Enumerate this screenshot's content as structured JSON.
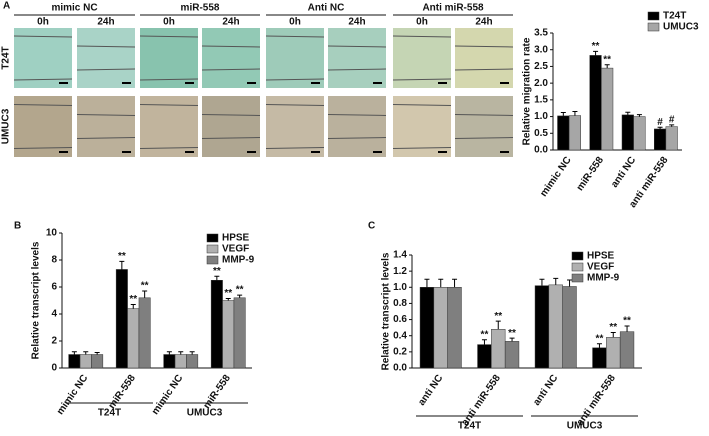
{
  "micrographs": {
    "groups": [
      "mimic NC",
      "miR-558",
      "Anti NC",
      "Anti miR-558"
    ],
    "times": [
      "0h",
      "24h"
    ],
    "rows": [
      "T24T",
      "UMUC3"
    ]
  },
  "chart_data": [
    {
      "type": "bar",
      "panel": "A",
      "ylabel": "Relative migration rate",
      "categories": [
        "mimic NC",
        "miR-558",
        "anti NC",
        "anti miR-558"
      ],
      "series": [
        {
          "name": "T24T",
          "color": "#000000",
          "values": [
            1.02,
            2.83,
            1.05,
            0.63
          ],
          "errors": [
            0.1,
            0.12,
            0.08,
            0.05
          ],
          "annotations": [
            null,
            "**",
            null,
            "#"
          ]
        },
        {
          "name": "UMUC3",
          "color": "#a6a6a6",
          "values": [
            1.03,
            2.45,
            1.0,
            0.7
          ],
          "errors": [
            0.12,
            0.1,
            0.06,
            0.05
          ],
          "annotations": [
            null,
            "**",
            null,
            "#"
          ]
        }
      ],
      "ylim": [
        0,
        3.5
      ],
      "yticks": [
        {
          "value": 0,
          "label": "0.0"
        },
        {
          "value": 0.5,
          "label": "0.5"
        },
        {
          "value": 1,
          "label": "1.0"
        },
        {
          "value": 1.5,
          "label": "1.5"
        },
        {
          "value": 2,
          "label": "2.0"
        },
        {
          "value": 2.5,
          "label": "2.5"
        },
        {
          "value": 3,
          "label": "3.0"
        },
        {
          "value": 3.5,
          "label": "3.5"
        }
      ],
      "legend": "upper right",
      "grid": false
    },
    {
      "type": "bar",
      "panel": "B",
      "ylabel": "Relative transcript levels",
      "categories": [
        "mimic NC",
        "miR-558",
        "mimic NC",
        "miR-558"
      ],
      "groups": [
        "T24T",
        "UMUC3"
      ],
      "series": [
        {
          "name": "HPSE",
          "color": "#000000",
          "values": [
            1,
            7.3,
            1,
            6.5
          ],
          "errors": [
            0.2,
            0.6,
            0.2,
            0.3
          ],
          "annotations": [
            null,
            "**",
            null,
            "**"
          ]
        },
        {
          "name": "VEGF",
          "color": "#b0b0b0",
          "values": [
            1,
            4.4,
            1,
            5.0
          ],
          "errors": [
            0.2,
            0.3,
            0.2,
            0.15
          ],
          "annotations": [
            null,
            "**",
            null,
            "**"
          ]
        },
        {
          "name": "MMP-9",
          "color": "#7f7f7f",
          "values": [
            1,
            5.2,
            1,
            5.2
          ],
          "errors": [
            0.15,
            0.5,
            0.2,
            0.2
          ],
          "annotations": [
            null,
            "**",
            null,
            "**"
          ]
        }
      ],
      "ylim": [
        0,
        10
      ],
      "yticks": [
        0,
        2,
        4,
        6,
        8,
        10
      ],
      "legend": "upper right",
      "grid": false
    },
    {
      "type": "bar",
      "panel": "C",
      "ylabel": "Relative transcript levels",
      "categories": [
        "anti NC",
        "anti miR-558",
        "anti NC",
        "anti miR-558"
      ],
      "groups": [
        "T24T",
        "UMUC3"
      ],
      "series": [
        {
          "name": "HPSE",
          "color": "#000000",
          "values": [
            1.0,
            0.29,
            1.02,
            0.25
          ],
          "errors": [
            0.1,
            0.06,
            0.08,
            0.05
          ],
          "annotations": [
            null,
            "**",
            null,
            "**"
          ]
        },
        {
          "name": "VEGF",
          "color": "#b0b0b0",
          "values": [
            1.0,
            0.48,
            1.03,
            0.38
          ],
          "errors": [
            0.1,
            0.1,
            0.08,
            0.06
          ],
          "annotations": [
            null,
            "**",
            null,
            "**"
          ]
        },
        {
          "name": "MMP-9",
          "color": "#7f7f7f",
          "values": [
            1.0,
            0.33,
            1.01,
            0.45
          ],
          "errors": [
            0.1,
            0.04,
            0.08,
            0.07
          ],
          "annotations": [
            null,
            "**",
            null,
            "**"
          ]
        }
      ],
      "ylim": [
        0,
        1.4
      ],
      "yticks": [
        {
          "value": 0,
          "label": "0.0"
        },
        {
          "value": 0.2,
          "label": "0.2"
        },
        {
          "value": 0.4,
          "label": "0.4"
        },
        {
          "value": 0.6,
          "label": "0.6"
        },
        {
          "value": 0.8,
          "label": "0.8"
        },
        {
          "value": 1,
          "label": "1.0"
        },
        {
          "value": 1.2,
          "label": "1.2"
        },
        {
          "value": 1.4,
          "label": "1.4"
        }
      ],
      "legend": "upper right",
      "grid": false
    }
  ]
}
